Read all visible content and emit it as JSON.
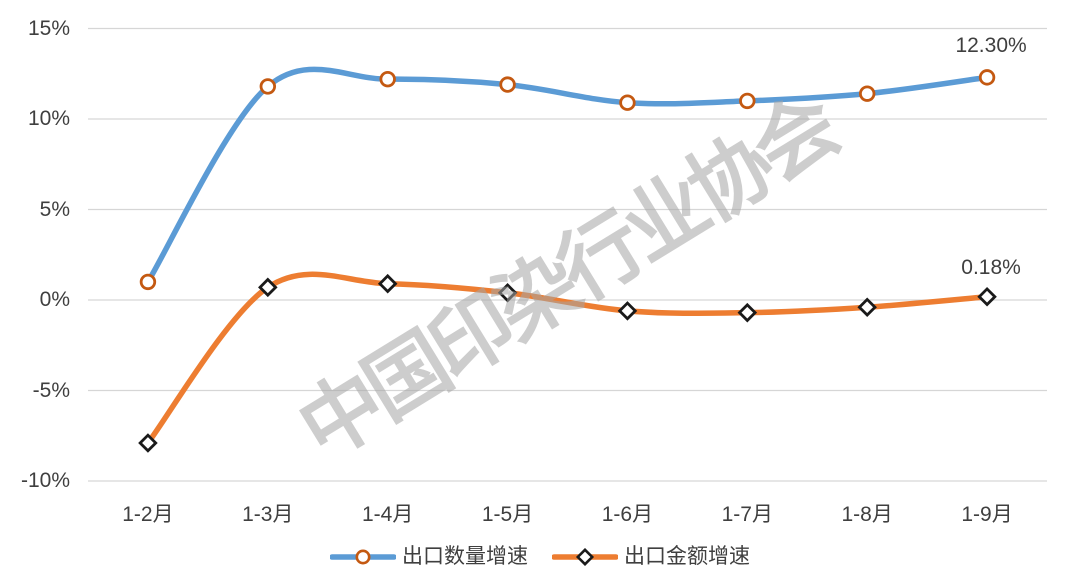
{
  "chart_data": {
    "type": "line",
    "smooth": true,
    "grid": true,
    "legend_position": "bottom",
    "categories": [
      "1-2月",
      "1-3月",
      "1-4月",
      "1-5月",
      "1-6月",
      "1-7月",
      "1-8月",
      "1-9月"
    ],
    "series": [
      {
        "name": "出口数量增速",
        "values": [
          1.0,
          11.8,
          12.2,
          11.9,
          10.9,
          11.0,
          11.4,
          12.3
        ],
        "color": "#5B9BD5",
        "marker": "circle",
        "marker_color": "#C45911",
        "end_label": "12.30%"
      },
      {
        "name": "出口金额增速",
        "values": [
          -7.9,
          0.7,
          0.9,
          0.4,
          -0.6,
          -0.7,
          -0.4,
          0.18
        ],
        "color": "#ED7D31",
        "marker": "diamond",
        "marker_color": "#1A1A1A",
        "end_label": "0.18%"
      }
    ],
    "yticks": [
      "15%",
      "10%",
      "5%",
      "0%",
      "-5%",
      "-10%"
    ],
    "ylim": [
      -10,
      15
    ],
    "xlabel": "",
    "ylabel": ""
  },
  "watermark": {
    "text": "中国印染行业协会"
  },
  "colors": {
    "background": "#FFFFFF",
    "gridline": "#D6D6D6",
    "axis_text": "#3F3F3F",
    "watermark": "#A6A6A6"
  }
}
